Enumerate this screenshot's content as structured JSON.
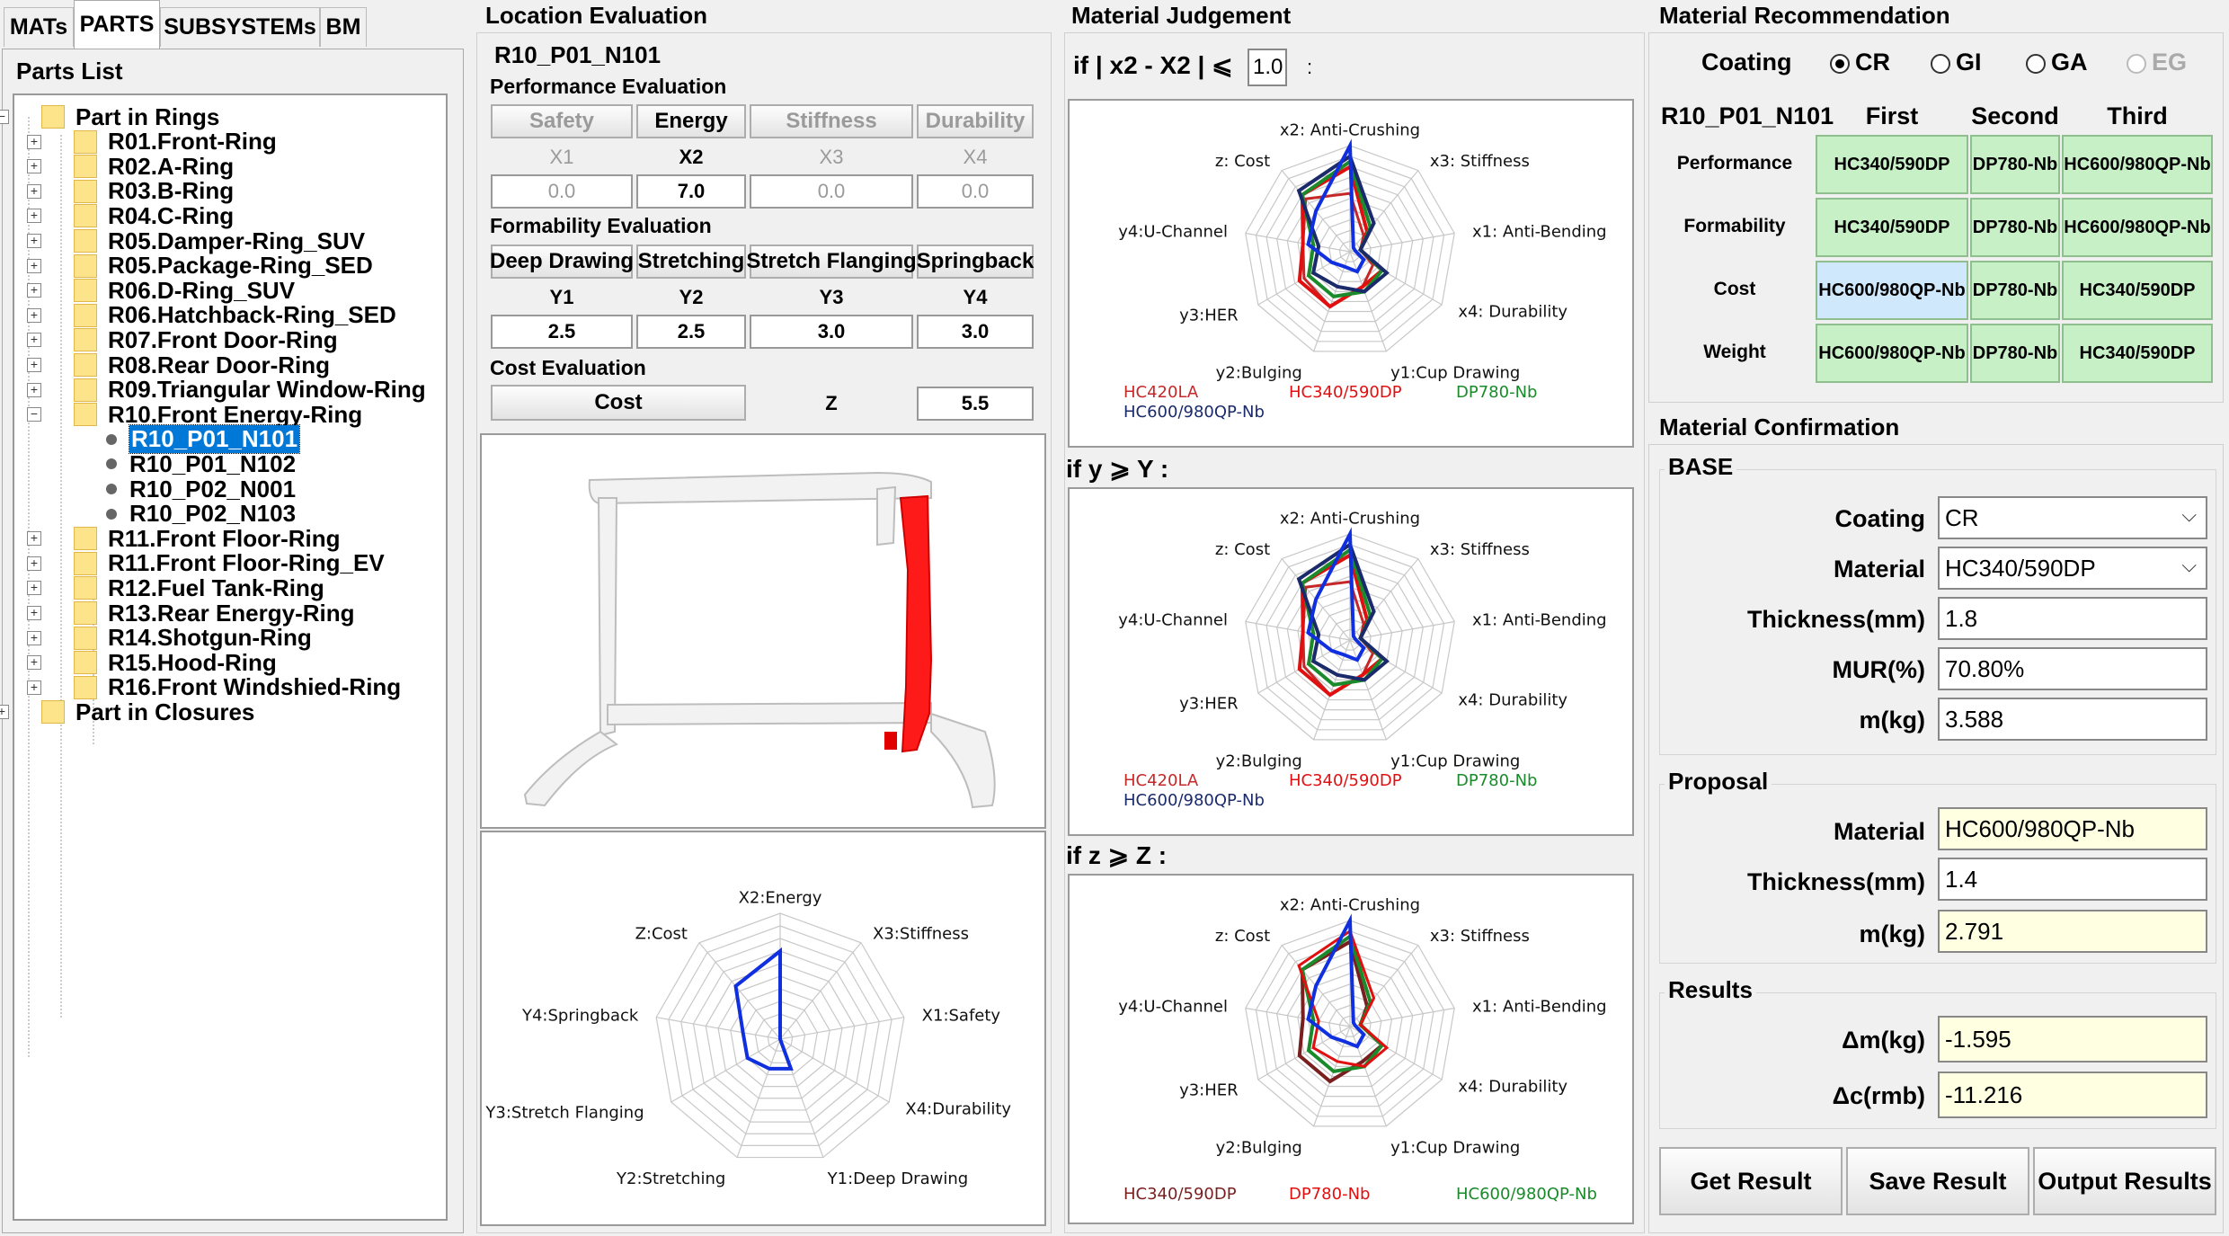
{
  "tabs": [
    "MATs",
    "PARTS",
    "SUBSYSTEMs",
    "BM"
  ],
  "parts_list": {
    "title": "Parts List",
    "root_rings": "Part in Rings",
    "items": [
      "R01.Front-Ring",
      "R02.A-Ring",
      "R03.B-Ring",
      "R04.C-Ring",
      "R05.Damper-Ring_SUV",
      "R05.Package-Ring_SED",
      "R06.D-Ring_SUV",
      "R06.Hatchback-Ring_SED",
      "R07.Front Door-Ring",
      "R08.Rear Door-Ring",
      "R09.Triangular Window-Ring",
      "R10.Front Energy-Ring"
    ],
    "children": [
      "R10_P01_N101",
      "R10_P01_N102",
      "R10_P02_N001",
      "R10_P02_N103"
    ],
    "items_after": [
      "R11.Front Floor-Ring",
      "R11.Front Floor-Ring_EV",
      "R12.Fuel Tank-Ring",
      "R13.Rear Energy-Ring",
      "R14.Shotgun-Ring",
      "R15.Hood-Ring",
      "R16.Front Windshied-Ring"
    ],
    "root_closures": "Part in Closures"
  },
  "location": {
    "title": "Location  Evaluation",
    "part_id": "R10_P01_N101",
    "perf_title": "Performance Evaluation",
    "perf_buttons": [
      "Safety",
      "Energy",
      "Stiffness",
      "Durability"
    ],
    "perf_headers": [
      "X1",
      "X2",
      "X3",
      "X4"
    ],
    "perf_values": [
      "0.0",
      "7.0",
      "0.0",
      "0.0"
    ],
    "form_title": "Formability Evaluation",
    "form_buttons": [
      "Deep Drawing",
      "Stretching",
      "Stretch Flanging",
      "Springback"
    ],
    "form_headers": [
      "Y1",
      "Y2",
      "Y3",
      "Y4"
    ],
    "form_values": [
      "2.5",
      "2.5",
      "3.0",
      "3.0"
    ],
    "cost_title": "Cost Evaluation",
    "cost_button": "Cost",
    "cost_header": "Z",
    "cost_value": "5.5",
    "radar_labels": [
      "X2:Energy",
      "X3:Stiffness",
      "X1:Safety",
      "X4:Durability",
      "Y1:Deep Drawing",
      "Y2:Stretching",
      "Y3:Stretch Flanging",
      "Y4:Springback",
      "Z:Cost"
    ]
  },
  "judgement": {
    "title": "Material  Judgement",
    "cond1_prefix": "if  | x2 - X2 | ⩽",
    "cond1_value": "1.0",
    "cond1_suffix": ":",
    "cond2": "if  y ⩾ Y :",
    "cond3": "if  z ⩾ Z :",
    "radar_labels": [
      "x2: Anti-Crushing",
      "x3: Stiffness",
      "x1: Anti-Bending",
      "x4: Durability",
      "y1:Cup Drawing",
      "y2:Bulging",
      "y3:HER",
      "y4:U-Channel",
      "z: Cost"
    ],
    "legend_a": [
      "HC420LA",
      "HC340/590DP",
      "DP780-Nb",
      "HC600/980QP-Nb"
    ],
    "legend_c": [
      "HC340/590DP",
      "DP780-Nb",
      "HC600/980QP-Nb"
    ],
    "colors": {
      "hc420la": "#c62828",
      "hc340": "#e01010",
      "dp780": "#1a8a2a",
      "hc600": "#1a2a6a",
      "blue": "#1030e0"
    }
  },
  "recommendation": {
    "title": "Material  Recommendation",
    "coating_label": "Coating",
    "coating_options": [
      "CR",
      "GI",
      "GA",
      "EG"
    ],
    "coating_selected": "CR",
    "part_id": "R10_P01_N101",
    "col_headers": [
      "First",
      "Second",
      "Third"
    ],
    "rows": [
      {
        "label": "Performance",
        "values": [
          "HC340/590DP",
          "DP780-Nb",
          "HC600/980QP-Nb"
        ]
      },
      {
        "label": "Formability",
        "values": [
          "HC340/590DP",
          "DP780-Nb",
          "HC600/980QP-Nb"
        ]
      },
      {
        "label": "Cost",
        "values": [
          "HC600/980QP-Nb",
          "DP780-Nb",
          "HC340/590DP"
        ]
      },
      {
        "label": "Weight",
        "values": [
          "HC600/980QP-Nb",
          "DP780-Nb",
          "HC340/590DP"
        ]
      }
    ]
  },
  "confirmation": {
    "title": "Material  Confirmation",
    "base_title": "BASE",
    "base": {
      "coating_label": "Coating",
      "coating": "CR",
      "material_label": "Material",
      "material": "HC340/590DP",
      "thickness_label": "Thickness(mm)",
      "thickness": "1.8",
      "mur_label": "MUR(%)",
      "mur": "70.80%",
      "mass_label": "m(kg)",
      "mass": "3.588"
    },
    "proposal_title": "Proposal",
    "proposal": {
      "material_label": "Material",
      "material": "HC600/980QP-Nb",
      "thickness_label": "Thickness(mm)",
      "thickness": "1.4",
      "mass_label": "m(kg)",
      "mass": "2.791"
    },
    "results_title": "Results",
    "results": {
      "dm_label": "Δm(kg)",
      "dm": "-1.595",
      "dc_label": "Δc(rmb)",
      "dc": "-11.216"
    },
    "buttons": [
      "Get Result",
      "Save Result",
      "Output Results"
    ]
  }
}
